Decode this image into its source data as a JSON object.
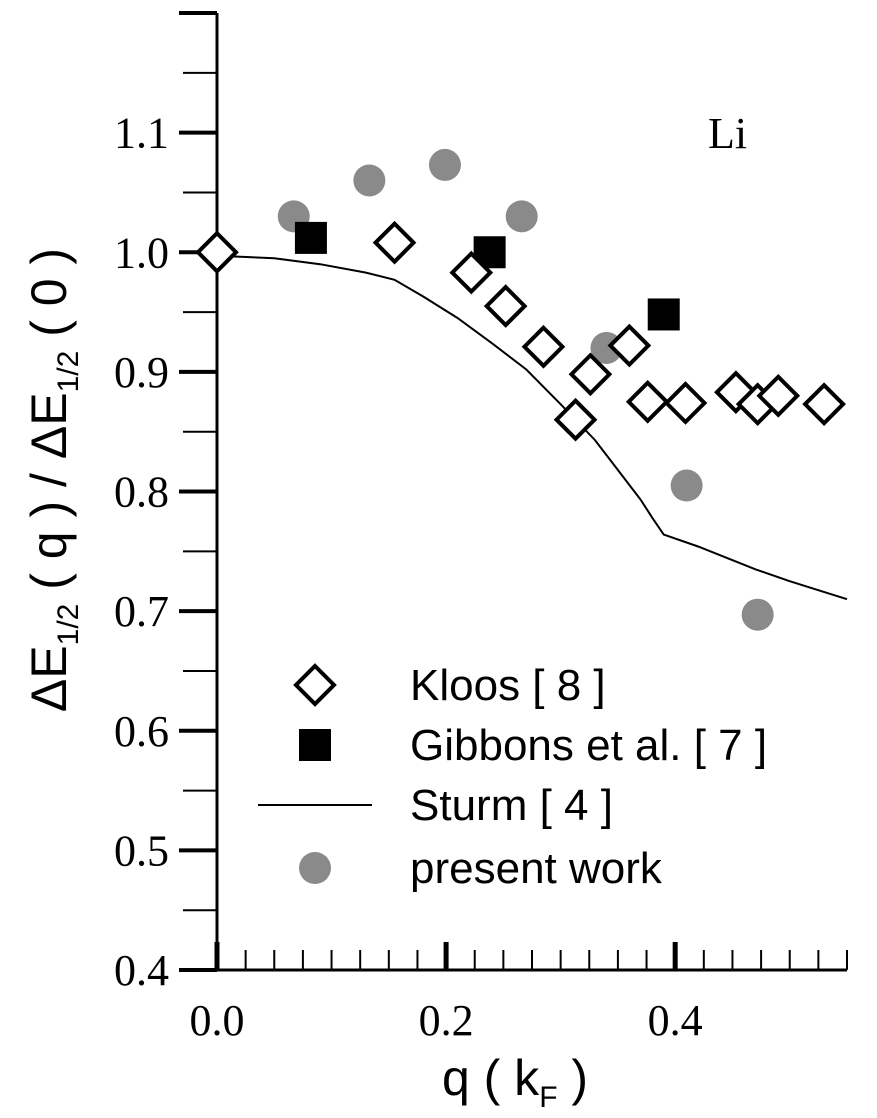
{
  "chart_data": {
    "type": "scatter",
    "annotation": "Li",
    "xlabel": {
      "main": "q ( k",
      "sub": "F",
      "end": " )"
    },
    "ylabel": {
      "p1": "ΔE",
      "s1": "1/2",
      "p2": " ( q ) / ΔE",
      "s2": "1/2",
      "p3": " ( 0 )"
    },
    "xlim": [
      0.0,
      0.55
    ],
    "ylim": [
      0.4,
      1.2
    ],
    "x_ticks": [
      {
        "value": 0.0,
        "label": "0.0"
      },
      {
        "value": 0.2,
        "label": "0.2"
      },
      {
        "value": 0.4,
        "label": "0.4"
      }
    ],
    "y_ticks": [
      {
        "value": 0.4,
        "label": "0.4"
      },
      {
        "value": 0.5,
        "label": "0.5"
      },
      {
        "value": 0.6,
        "label": "0.6"
      },
      {
        "value": 0.7,
        "label": "0.7"
      },
      {
        "value": 0.8,
        "label": "0.8"
      },
      {
        "value": 0.9,
        "label": "0.9"
      },
      {
        "value": 1.0,
        "label": "1.0"
      },
      {
        "value": 1.1,
        "label": "1.1"
      }
    ],
    "legend_position": "bottom-right",
    "series": [
      {
        "name": "Kloos [ 8 ]",
        "marker": "open-diamond",
        "color": "#000000",
        "points": [
          [
            0.0,
            1.0
          ],
          [
            0.155,
            1.008
          ],
          [
            0.222,
            0.983
          ],
          [
            0.252,
            0.955
          ],
          [
            0.285,
            0.921
          ],
          [
            0.313,
            0.86
          ],
          [
            0.326,
            0.898
          ],
          [
            0.36,
            0.922
          ],
          [
            0.376,
            0.875
          ],
          [
            0.409,
            0.874
          ],
          [
            0.453,
            0.883
          ],
          [
            0.472,
            0.873
          ],
          [
            0.49,
            0.88
          ],
          [
            0.53,
            0.873
          ]
        ]
      },
      {
        "name": "Gibbons et al. [ 7 ]",
        "marker": "filled-square",
        "color": "#000000",
        "points": [
          [
            0.082,
            1.012
          ],
          [
            0.238,
            1.0
          ],
          [
            0.39,
            0.948
          ]
        ]
      },
      {
        "name": "Sturm [ 4 ]",
        "marker": "line",
        "color": "#000000",
        "points": [
          [
            0.0,
            0.997
          ],
          [
            0.05,
            0.995
          ],
          [
            0.09,
            0.99
          ],
          [
            0.13,
            0.983
          ],
          [
            0.155,
            0.977
          ],
          [
            0.18,
            0.963
          ],
          [
            0.21,
            0.945
          ],
          [
            0.24,
            0.924
          ],
          [
            0.27,
            0.902
          ],
          [
            0.3,
            0.873
          ],
          [
            0.33,
            0.843
          ],
          [
            0.35,
            0.818
          ],
          [
            0.37,
            0.793
          ],
          [
            0.38,
            0.778
          ],
          [
            0.39,
            0.764
          ],
          [
            0.42,
            0.754
          ],
          [
            0.47,
            0.735
          ],
          [
            0.5,
            0.725
          ],
          [
            0.55,
            0.71
          ]
        ]
      },
      {
        "name": "present work",
        "marker": "filled-circle",
        "color": "#8a8a8a",
        "points": [
          [
            0.067,
            1.03
          ],
          [
            0.133,
            1.06
          ],
          [
            0.199,
            1.073
          ],
          [
            0.266,
            1.03
          ],
          [
            0.34,
            0.92
          ],
          [
            0.41,
            0.805
          ],
          [
            0.472,
            0.697
          ]
        ]
      }
    ]
  }
}
